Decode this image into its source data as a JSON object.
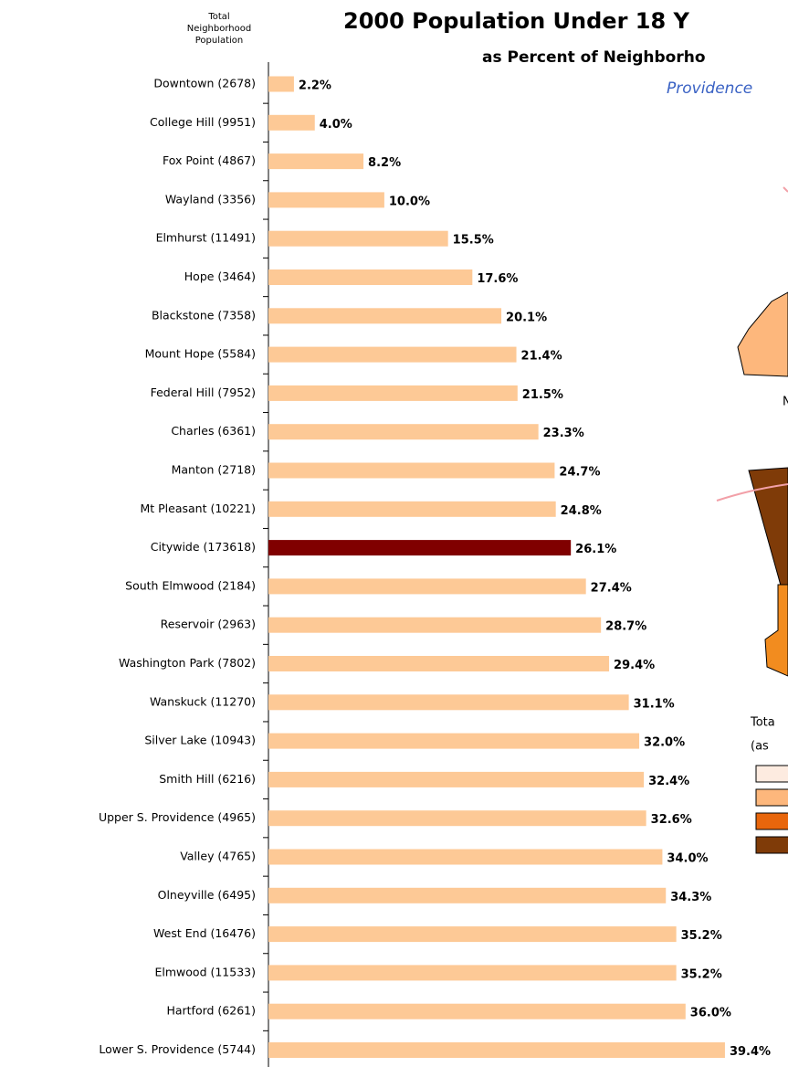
{
  "chart_data": {
    "type": "bar",
    "orientation": "horizontal",
    "title": "2000 Population Under 18 Y",
    "subtitle": "as Percent of Neighborho",
    "place": "Providence",
    "y_axis_label": [
      "Total",
      "Neighborhood",
      "Population"
    ],
    "categories": [
      "Downtown  (2678)",
      "College Hill  (9951)",
      "Fox Point  (4867)",
      "Wayland  (3356)",
      "Elmhurst  (11491)",
      "Hope  (3464)",
      "Blackstone  (7358)",
      "Mount Hope  (5584)",
      "Federal Hill  (7952)",
      "Charles  (6361)",
      "Manton  (2718)",
      "Mt Pleasant  (10221)",
      "Citywide  (173618)",
      "South Elmwood  (2184)",
      "Reservoir  (2963)",
      "Washington Park  (7802)",
      "Wanskuck  (11270)",
      "Silver Lake  (10943)",
      "Smith Hill  (6216)",
      "Upper S. Providence  (4965)",
      "Valley  (4765)",
      "Olneyville  (6495)",
      "West End  (16476)",
      "Elmwood  (11533)",
      "Hartford  (6261)",
      "Lower S. Providence  (5744)"
    ],
    "values": [
      2.2,
      4.0,
      8.2,
      10.0,
      15.5,
      17.6,
      20.1,
      21.4,
      21.5,
      23.3,
      24.7,
      24.8,
      26.1,
      27.4,
      28.7,
      29.4,
      31.1,
      32.0,
      32.4,
      32.6,
      34.0,
      34.3,
      35.2,
      35.2,
      36.0,
      39.4
    ],
    "value_labels": [
      "2.2%",
      "4.0%",
      "8.2%",
      "10.0%",
      "15.5%",
      "17.6%",
      "20.1%",
      "21.4%",
      "21.5%",
      "23.3%",
      "24.7%",
      "24.8%",
      "26.1%",
      "27.4%",
      "28.7%",
      "29.4%",
      "31.1%",
      "32.0%",
      "32.4%",
      "32.6%",
      "34.0%",
      "34.3%",
      "35.2%",
      "35.2%",
      "36.0%",
      "39.4%"
    ],
    "colors": [
      "#fdc996",
      "#fdc996",
      "#fdc996",
      "#fdc996",
      "#fdc996",
      "#fdc996",
      "#fdc996",
      "#fdc996",
      "#fdc996",
      "#fdc996",
      "#fdc996",
      "#fdc996",
      "#800000",
      "#fdc996",
      "#fdc996",
      "#fdc996",
      "#fdc996",
      "#fdc996",
      "#fdc996",
      "#fdc996",
      "#fdc996",
      "#fdc996",
      "#fdc996",
      "#fdc996",
      "#fdc996",
      "#fdc996"
    ],
    "xlim": [
      0,
      45
    ],
    "legend": {
      "title": [
        "Tota",
        "(as"
      ],
      "colors": [
        "#fdebe0",
        "#fdb77c",
        "#e8660c",
        "#7f3b08"
      ]
    },
    "map_label": "N"
  }
}
